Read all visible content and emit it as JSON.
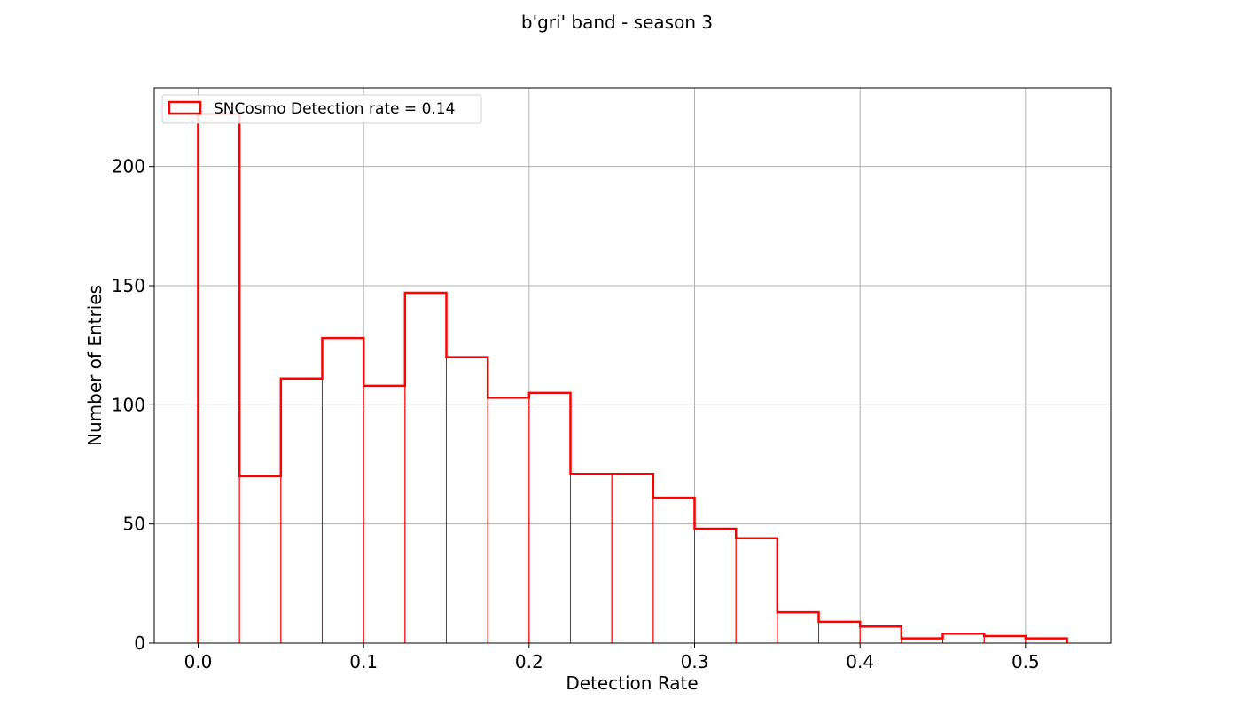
{
  "chart_data": {
    "type": "histogram",
    "title": "b'gri' band - season 3",
    "xlabel": "Detection Rate",
    "ylabel": "Number of Entries",
    "xlim": [
      -0.0265,
      0.5515
    ],
    "ylim": [
      0,
      233
    ],
    "grid": true,
    "legend_position": "top-left",
    "x_ticks": [
      0.0,
      0.1,
      0.2,
      0.3,
      0.4,
      0.5
    ],
    "x_tick_labels": [
      "0.0",
      "0.1",
      "0.2",
      "0.3",
      "0.4",
      "0.5"
    ],
    "y_ticks": [
      0,
      50,
      100,
      150,
      200
    ],
    "y_tick_labels": [
      "0",
      "50",
      "100",
      "150",
      "200"
    ],
    "colors": {
      "series": "#ff0000",
      "grid": "#b0b0b0",
      "axes": "#000000"
    },
    "bin_edges": [
      0.0,
      0.025,
      0.05,
      0.075,
      0.1,
      0.125,
      0.15,
      0.175,
      0.2,
      0.225,
      0.25,
      0.275,
      0.3,
      0.325,
      0.35,
      0.375,
      0.4,
      0.425,
      0.45,
      0.475,
      0.5,
      0.525
    ],
    "series": [
      {
        "name": "SNCosmo  Detection rate = 0.14",
        "values": [
          222,
          70,
          111,
          128,
          108,
          147,
          120,
          103,
          105,
          71,
          71,
          61,
          48,
          44,
          13,
          9,
          7,
          2,
          4,
          3,
          2
        ]
      }
    ]
  }
}
